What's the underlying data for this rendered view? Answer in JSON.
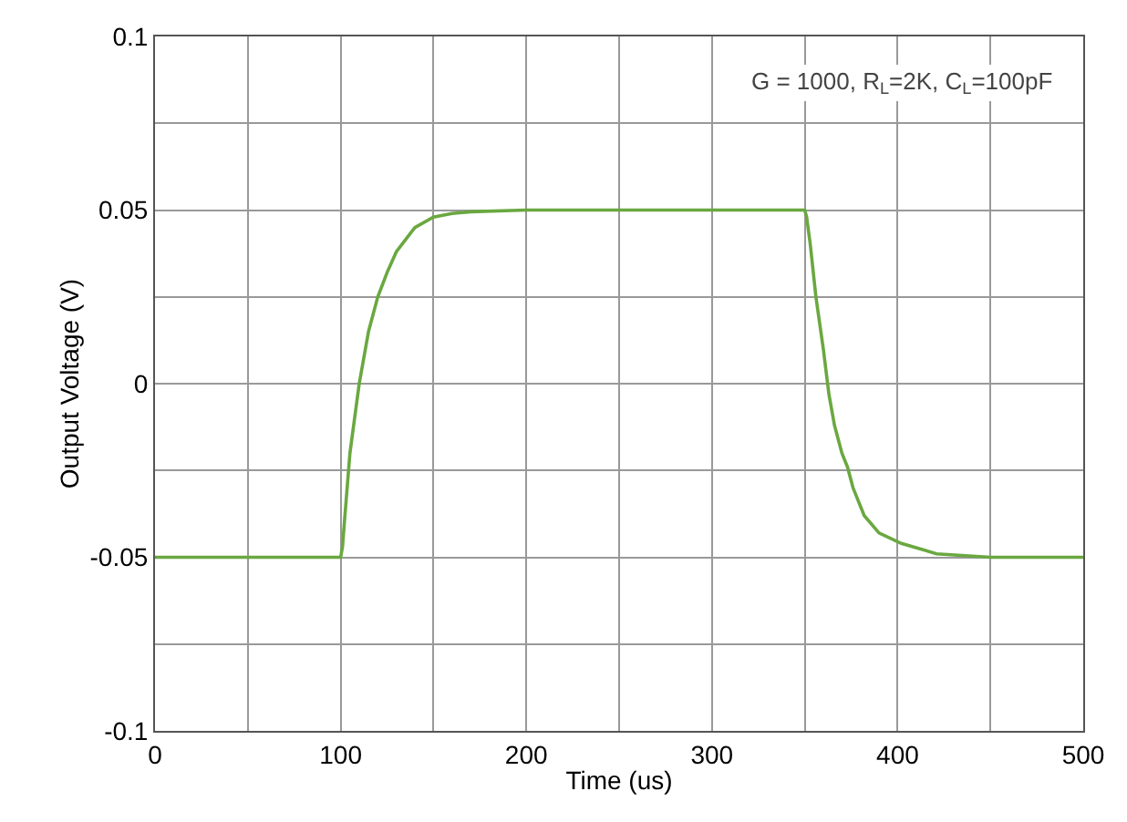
{
  "chart_data": {
    "type": "line",
    "xlabel": "Time (us)",
    "ylabel": "Output Voltage (V)",
    "annotations": [
      "G = 1000, R$_{L}$=2K, C$_{L}$=100pF"
    ],
    "x": [
      0,
      50,
      100,
      101,
      102,
      105,
      110,
      115,
      120,
      125,
      130,
      140,
      150,
      160,
      170,
      200,
      250,
      300,
      350,
      351,
      353,
      356,
      360,
      363,
      366,
      370,
      373,
      376,
      382,
      390,
      402,
      421,
      450,
      500
    ],
    "series": [
      {
        "color": "#6aa840",
        "values": [
          -0.05,
          -0.05,
          -0.05,
          -0.047,
          -0.04,
          -0.02,
          0.0,
          0.015,
          0.025,
          0.032,
          0.038,
          0.045,
          0.048,
          0.049,
          0.0495,
          0.05,
          0.05,
          0.05,
          0.05,
          0.048,
          0.04,
          0.025,
          0.01,
          -0.003,
          -0.012,
          -0.02,
          -0.024,
          -0.03,
          -0.038,
          -0.043,
          -0.046,
          -0.049,
          -0.05,
          -0.05
        ]
      }
    ],
    "xlim": [
      0,
      500
    ],
    "xticks": [
      0,
      {
        "value": 50,
        "label": null
      },
      100,
      {
        "value": 150,
        "label": null
      },
      200,
      {
        "value": 250,
        "label": null
      },
      300,
      {
        "value": 350,
        "label": null
      },
      400,
      {
        "value": 450,
        "label": null
      },
      500
    ],
    "ylim": [
      -0.1,
      0.1
    ],
    "yticks": [
      -0.1,
      {
        "value": -0.075,
        "label": null
      },
      -0.05,
      {
        "value": -0.025,
        "label": null
      },
      0,
      {
        "value": 0.025,
        "label": null
      },
      0.05,
      {
        "value": 0.075,
        "label": null
      },
      0.1
    ],
    "grid": true,
    "marker": "none",
    "line_style": "solid"
  }
}
